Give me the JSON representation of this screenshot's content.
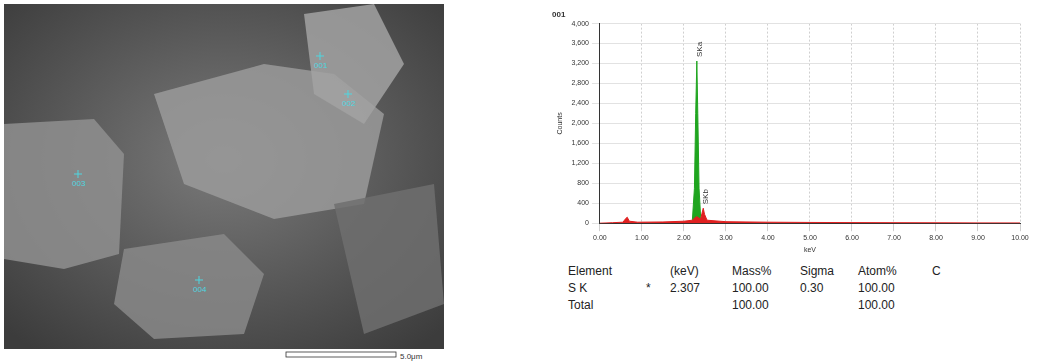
{
  "chart_data": {
    "type": "line",
    "title": "001",
    "x_label": "keV",
    "y_label": "Counts",
    "x": [
      0,
      0.3,
      0.55,
      0.6,
      0.65,
      0.7,
      0.9,
      1.5,
      2.0,
      2.2,
      2.25,
      2.28,
      2.307,
      2.33,
      2.36,
      2.4,
      2.43,
      2.46,
      2.49,
      2.55,
      3.0,
      4.0,
      5.0,
      6.0,
      7.0,
      8.0,
      9.0,
      10.0
    ],
    "series": [
      {
        "color": "#e02020",
        "values": [
          0,
          10,
          20,
          80,
          120,
          40,
          20,
          25,
          40,
          60,
          100,
          120,
          130,
          120,
          100,
          90,
          200,
          300,
          180,
          60,
          30,
          20,
          15,
          12,
          10,
          8,
          6,
          5
        ]
      },
      {
        "color": "#1fa51f",
        "values": [
          null,
          null,
          null,
          null,
          null,
          null,
          null,
          null,
          null,
          60,
          700,
          2200,
          3250,
          2200,
          700,
          90,
          null,
          null,
          null,
          null,
          null,
          null,
          null,
          null,
          null,
          null,
          null,
          null
        ]
      }
    ],
    "annotations": [
      {
        "text": "SKa",
        "x": 2.307,
        "y": 3250
      },
      {
        "text": "SKb",
        "x": 2.46,
        "y": 300
      }
    ],
    "xlim": [
      0,
      10
    ],
    "xticks": [
      {
        "value": 0,
        "label": "0.00"
      },
      {
        "value": 1,
        "label": "1.00"
      },
      {
        "value": 2,
        "label": "2.00"
      },
      {
        "value": 3,
        "label": "3.00"
      },
      {
        "value": 4,
        "label": "4.00"
      },
      {
        "value": 5,
        "label": "5.00"
      },
      {
        "value": 6,
        "label": "6.00"
      },
      {
        "value": 7,
        "label": "7.00"
      },
      {
        "value": 8,
        "label": "8.00"
      },
      {
        "value": 9,
        "label": "9.00"
      },
      {
        "value": 10,
        "label": "10.00"
      }
    ],
    "ylim": [
      0,
      4000
    ],
    "yticks": [
      0,
      400,
      800,
      1200,
      1600,
      2000,
      2400,
      2800,
      3200,
      3600,
      4000
    ],
    "grid": true
  },
  "table": {
    "header": [
      "Element",
      null,
      "(keV)",
      "Mass%",
      "Sigma",
      "Atom%",
      "C"
    ],
    "rows": [
      [
        "S K",
        "*",
        "2.307",
        "100.00",
        "0.30",
        "100.00",
        null
      ],
      [
        "Total",
        null,
        null,
        "100.00",
        null,
        "100.00",
        null
      ]
    ]
  },
  "image": {
    "markers": [
      "001",
      "002",
      "003",
      "004"
    ],
    "scale_bar": "5.0μm"
  }
}
